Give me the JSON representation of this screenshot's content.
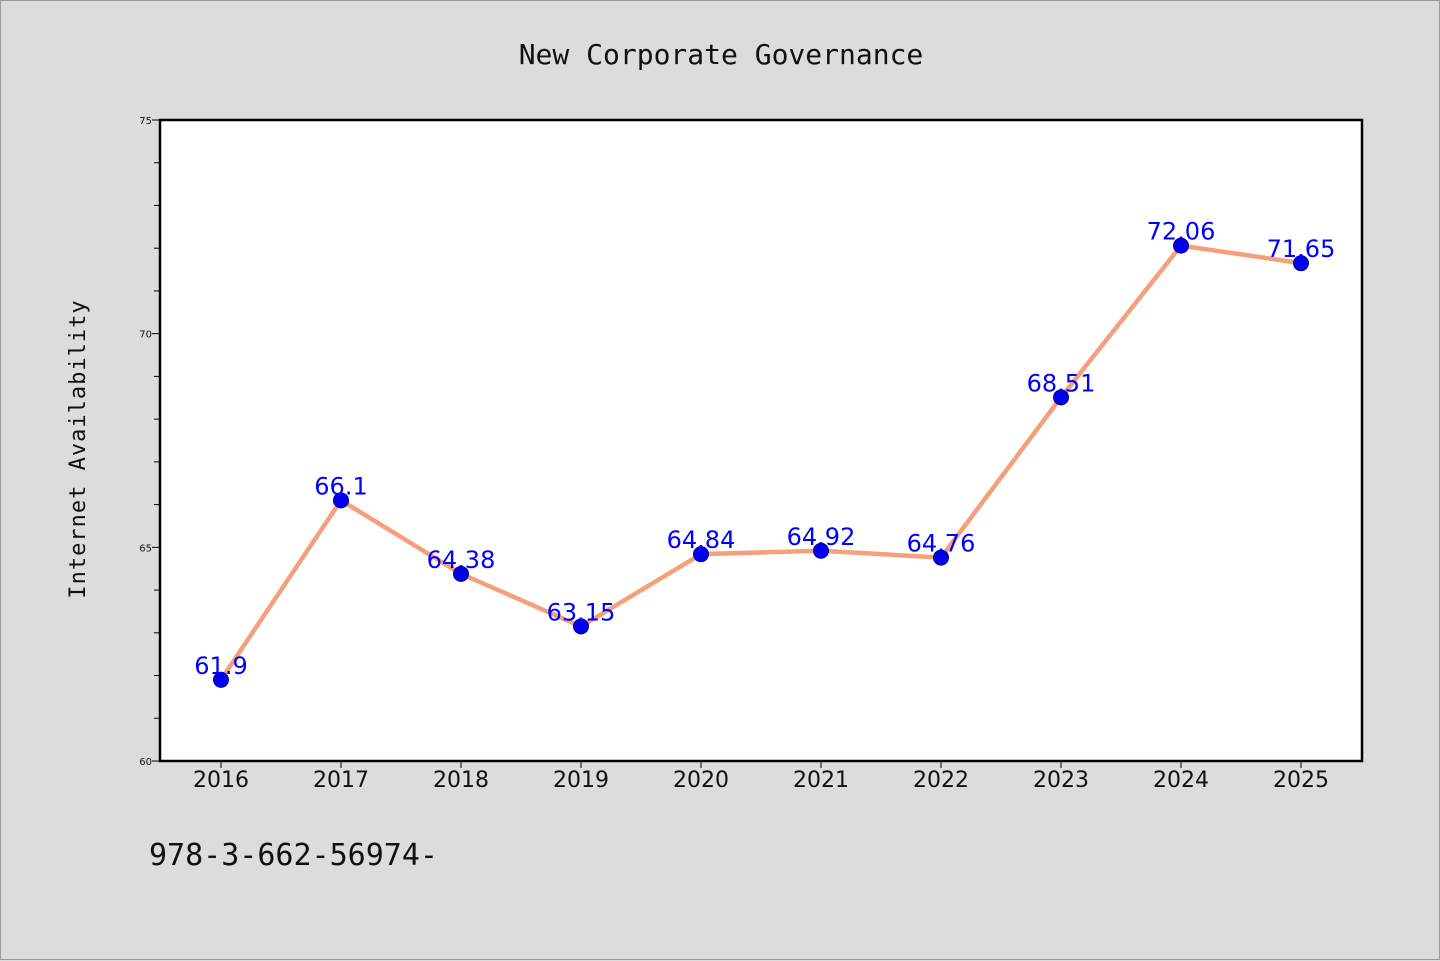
{
  "chart_data": {
    "type": "line",
    "title": "New Corporate Governance",
    "ylabel": "Internet Availability",
    "xlabel": "",
    "categories": [
      "2016",
      "2017",
      "2018",
      "2019",
      "2020",
      "2021",
      "2022",
      "2023",
      "2024",
      "2025"
    ],
    "values": [
      61.9,
      66.1,
      64.38,
      63.15,
      64.84,
      64.92,
      64.76,
      68.51,
      72.06,
      71.65
    ],
    "data_labels": [
      "61.9",
      "66.1",
      "64.38",
      "63.15",
      "64.84",
      "64.92",
      "64.76",
      "68.51",
      "72.06",
      "71.65"
    ],
    "ylim": [
      60,
      75
    ],
    "yticks": [
      60,
      65,
      70,
      75
    ],
    "grid": false,
    "line_color": "#f4a07a",
    "marker_color": "#0000ee",
    "label_color": "#0000ff"
  },
  "footnote": "978-3-662-56974-"
}
